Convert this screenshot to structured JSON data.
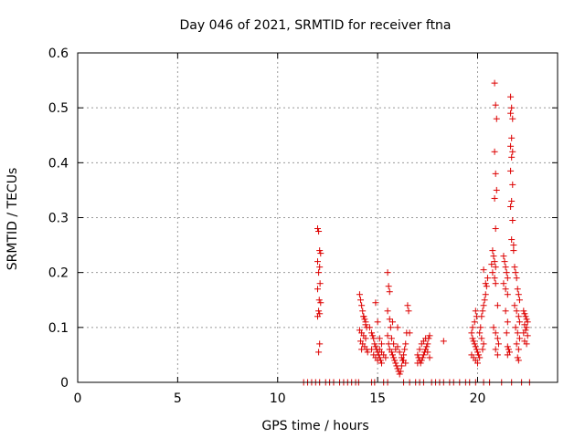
{
  "chart_data": {
    "type": "scatter",
    "title": "Day 046 of 2021, SRMTID for receiver ftna",
    "xlabel": "GPS time / hours",
    "ylabel": "SRMTID / TECUs",
    "xlim": [
      0,
      24
    ],
    "ylim": [
      0,
      0.6
    ],
    "xticks": [
      0,
      5,
      10,
      15,
      20
    ],
    "yticks": [
      0,
      0.1,
      0.2,
      0.3,
      0.4,
      0.5,
      0.6
    ],
    "ytick_labels": [
      "0",
      "0.1",
      "0.2",
      "0.3",
      "0.4",
      "0.5",
      "0.6"
    ],
    "grid": true,
    "marker": "+",
    "color": "#dd0000",
    "series": [
      {
        "name": "SRMTID",
        "points": [
          [
            12.0,
            0.28
          ],
          [
            12.05,
            0.275
          ],
          [
            12.1,
            0.24
          ],
          [
            12.15,
            0.235
          ],
          [
            12.0,
            0.22
          ],
          [
            12.1,
            0.21
          ],
          [
            12.05,
            0.2
          ],
          [
            12.12,
            0.18
          ],
          [
            12.0,
            0.17
          ],
          [
            12.08,
            0.15
          ],
          [
            12.15,
            0.145
          ],
          [
            12.05,
            0.13
          ],
          [
            12.1,
            0.125
          ],
          [
            12.0,
            0.12
          ],
          [
            12.1,
            0.07
          ],
          [
            12.05,
            0.055
          ],
          [
            14.1,
            0.16
          ],
          [
            14.15,
            0.15
          ],
          [
            14.2,
            0.14
          ],
          [
            14.25,
            0.13
          ],
          [
            14.3,
            0.12
          ],
          [
            14.35,
            0.115
          ],
          [
            14.4,
            0.11
          ],
          [
            14.45,
            0.1
          ],
          [
            14.1,
            0.095
          ],
          [
            14.2,
            0.09
          ],
          [
            14.3,
            0.085
          ],
          [
            14.4,
            0.08
          ],
          [
            14.15,
            0.075
          ],
          [
            14.25,
            0.07
          ],
          [
            14.35,
            0.065
          ],
          [
            14.45,
            0.06
          ],
          [
            14.5,
            0.055
          ],
          [
            14.2,
            0.06
          ],
          [
            14.3,
            0.12
          ],
          [
            14.4,
            0.105
          ],
          [
            14.6,
            0.1
          ],
          [
            14.7,
            0.09
          ],
          [
            14.75,
            0.085
          ],
          [
            14.8,
            0.08
          ],
          [
            14.85,
            0.07
          ],
          [
            14.9,
            0.065
          ],
          [
            14.95,
            0.06
          ],
          [
            15.0,
            0.055
          ],
          [
            15.05,
            0.05
          ],
          [
            15.1,
            0.045
          ],
          [
            15.15,
            0.04
          ],
          [
            15.2,
            0.035
          ],
          [
            14.7,
            0.06
          ],
          [
            14.8,
            0.05
          ],
          [
            14.9,
            0.045
          ],
          [
            15.0,
            0.04
          ],
          [
            15.1,
            0.06
          ],
          [
            15.2,
            0.07
          ],
          [
            14.9,
            0.145
          ],
          [
            15.0,
            0.11
          ],
          [
            15.1,
            0.08
          ],
          [
            15.2,
            0.055
          ],
          [
            15.3,
            0.05
          ],
          [
            15.4,
            0.045
          ],
          [
            15.5,
            0.2
          ],
          [
            15.55,
            0.175
          ],
          [
            15.6,
            0.165
          ],
          [
            15.5,
            0.13
          ],
          [
            15.6,
            0.115
          ],
          [
            15.65,
            0.1
          ],
          [
            15.5,
            0.085
          ],
          [
            15.55,
            0.07
          ],
          [
            15.6,
            0.06
          ],
          [
            15.7,
            0.055
          ],
          [
            15.75,
            0.05
          ],
          [
            15.8,
            0.045
          ],
          [
            15.85,
            0.04
          ],
          [
            15.9,
            0.035
          ],
          [
            15.95,
            0.03
          ],
          [
            16.0,
            0.025
          ],
          [
            16.05,
            0.02
          ],
          [
            16.1,
            0.015
          ],
          [
            16.15,
            0.02
          ],
          [
            16.2,
            0.03
          ],
          [
            16.25,
            0.04
          ],
          [
            16.3,
            0.05
          ],
          [
            16.35,
            0.06
          ],
          [
            16.4,
            0.07
          ],
          [
            16.45,
            0.09
          ],
          [
            16.5,
            0.14
          ],
          [
            16.55,
            0.13
          ],
          [
            16.6,
            0.09
          ],
          [
            15.7,
            0.08
          ],
          [
            15.8,
            0.07
          ],
          [
            15.9,
            0.06
          ],
          [
            16.0,
            0.065
          ],
          [
            16.1,
            0.055
          ],
          [
            16.2,
            0.045
          ],
          [
            16.3,
            0.04
          ],
          [
            16.4,
            0.035
          ],
          [
            15.75,
            0.11
          ],
          [
            16.0,
            0.1
          ],
          [
            17.0,
            0.05
          ],
          [
            17.05,
            0.045
          ],
          [
            17.1,
            0.04
          ],
          [
            17.15,
            0.035
          ],
          [
            17.2,
            0.04
          ],
          [
            17.25,
            0.045
          ],
          [
            17.3,
            0.05
          ],
          [
            17.35,
            0.055
          ],
          [
            17.4,
            0.06
          ],
          [
            17.45,
            0.065
          ],
          [
            17.5,
            0.07
          ],
          [
            17.55,
            0.08
          ],
          [
            17.6,
            0.085
          ],
          [
            17.1,
            0.06
          ],
          [
            17.2,
            0.07
          ],
          [
            17.3,
            0.075
          ],
          [
            17.4,
            0.08
          ],
          [
            17.5,
            0.055
          ],
          [
            17.6,
            0.045
          ],
          [
            17.0,
            0.035
          ],
          [
            18.3,
            0.075
          ],
          [
            19.7,
            0.09
          ],
          [
            19.75,
            0.08
          ],
          [
            19.8,
            0.075
          ],
          [
            19.85,
            0.07
          ],
          [
            19.9,
            0.065
          ],
          [
            19.95,
            0.06
          ],
          [
            20.0,
            0.055
          ],
          [
            20.05,
            0.05
          ],
          [
            19.7,
            0.05
          ],
          [
            19.8,
            0.045
          ],
          [
            19.9,
            0.04
          ],
          [
            20.0,
            0.035
          ],
          [
            20.1,
            0.045
          ],
          [
            19.75,
            0.1
          ],
          [
            19.85,
            0.11
          ],
          [
            19.95,
            0.12
          ],
          [
            19.9,
            0.13
          ],
          [
            20.1,
            0.09
          ],
          [
            20.15,
            0.1
          ],
          [
            20.2,
            0.12
          ],
          [
            20.25,
            0.13
          ],
          [
            20.3,
            0.14
          ],
          [
            20.35,
            0.15
          ],
          [
            20.4,
            0.16
          ],
          [
            20.45,
            0.175
          ],
          [
            20.5,
            0.19
          ],
          [
            20.3,
            0.205
          ],
          [
            20.4,
            0.18
          ],
          [
            20.2,
            0.08
          ],
          [
            20.3,
            0.07
          ],
          [
            20.25,
            0.06
          ],
          [
            20.7,
            0.215
          ],
          [
            20.75,
            0.24
          ],
          [
            20.8,
            0.23
          ],
          [
            20.85,
            0.22
          ],
          [
            20.9,
            0.21
          ],
          [
            20.75,
            0.2
          ],
          [
            20.85,
            0.19
          ],
          [
            20.9,
            0.18
          ],
          [
            21.0,
            0.14
          ],
          [
            20.8,
            0.1
          ],
          [
            20.9,
            0.09
          ],
          [
            21.0,
            0.08
          ],
          [
            21.05,
            0.07
          ],
          [
            20.9,
            0.06
          ],
          [
            21.0,
            0.05
          ],
          [
            20.85,
            0.545
          ],
          [
            20.9,
            0.505
          ],
          [
            20.95,
            0.48
          ],
          [
            20.85,
            0.42
          ],
          [
            20.9,
            0.38
          ],
          [
            20.95,
            0.35
          ],
          [
            20.85,
            0.335
          ],
          [
            20.9,
            0.28
          ],
          [
            21.3,
            0.23
          ],
          [
            21.35,
            0.22
          ],
          [
            21.4,
            0.21
          ],
          [
            21.45,
            0.2
          ],
          [
            21.5,
            0.19
          ],
          [
            21.3,
            0.18
          ],
          [
            21.4,
            0.17
          ],
          [
            21.5,
            0.16
          ],
          [
            21.4,
            0.13
          ],
          [
            21.5,
            0.11
          ],
          [
            21.45,
            0.09
          ],
          [
            21.5,
            0.065
          ],
          [
            21.55,
            0.06
          ],
          [
            21.6,
            0.055
          ],
          [
            21.5,
            0.05
          ],
          [
            21.65,
            0.52
          ],
          [
            21.7,
            0.5
          ],
          [
            21.65,
            0.49
          ],
          [
            21.75,
            0.48
          ],
          [
            21.7,
            0.445
          ],
          [
            21.65,
            0.43
          ],
          [
            21.75,
            0.42
          ],
          [
            21.7,
            0.41
          ],
          [
            21.65,
            0.385
          ],
          [
            21.75,
            0.36
          ],
          [
            21.7,
            0.33
          ],
          [
            21.65,
            0.32
          ],
          [
            21.75,
            0.295
          ],
          [
            21.7,
            0.26
          ],
          [
            21.8,
            0.25
          ],
          [
            21.8,
            0.24
          ],
          [
            21.85,
            0.21
          ],
          [
            21.9,
            0.2
          ],
          [
            21.95,
            0.19
          ],
          [
            22.0,
            0.17
          ],
          [
            22.05,
            0.16
          ],
          [
            22.1,
            0.15
          ],
          [
            21.85,
            0.14
          ],
          [
            21.95,
            0.13
          ],
          [
            22.05,
            0.12
          ],
          [
            22.1,
            0.11
          ],
          [
            21.9,
            0.1
          ],
          [
            22.0,
            0.09
          ],
          [
            22.1,
            0.08
          ],
          [
            21.95,
            0.07
          ],
          [
            22.05,
            0.06
          ],
          [
            22.0,
            0.045
          ],
          [
            22.05,
            0.04
          ],
          [
            22.3,
            0.13
          ],
          [
            22.35,
            0.125
          ],
          [
            22.4,
            0.12
          ],
          [
            22.45,
            0.115
          ],
          [
            22.5,
            0.11
          ],
          [
            22.35,
            0.105
          ],
          [
            22.45,
            0.1
          ],
          [
            22.4,
            0.095
          ],
          [
            22.3,
            0.09
          ],
          [
            22.5,
            0.085
          ],
          [
            22.35,
            0.075
          ],
          [
            22.45,
            0.07
          ],
          [
            11.3,
            0
          ],
          [
            11.5,
            0
          ],
          [
            11.7,
            0
          ],
          [
            11.9,
            0
          ],
          [
            12.1,
            0
          ],
          [
            12.4,
            0
          ],
          [
            12.6,
            0
          ],
          [
            12.8,
            0
          ],
          [
            13.1,
            0
          ],
          [
            13.3,
            0
          ],
          [
            13.5,
            0
          ],
          [
            13.7,
            0
          ],
          [
            13.9,
            0
          ],
          [
            14.05,
            0
          ],
          [
            14.7,
            0
          ],
          [
            14.85,
            0
          ],
          [
            15.3,
            0
          ],
          [
            15.5,
            0
          ],
          [
            16.3,
            0
          ],
          [
            16.6,
            0
          ],
          [
            16.9,
            0
          ],
          [
            17.1,
            0
          ],
          [
            17.3,
            0
          ],
          [
            17.7,
            0
          ],
          [
            17.9,
            0
          ],
          [
            18.1,
            0
          ],
          [
            18.3,
            0
          ],
          [
            18.6,
            0
          ],
          [
            18.8,
            0
          ],
          [
            19.1,
            0
          ],
          [
            19.4,
            0
          ],
          [
            19.6,
            0
          ],
          [
            19.9,
            0
          ],
          [
            20.3,
            0
          ],
          [
            20.6,
            0
          ],
          [
            21.2,
            0
          ],
          [
            21.7,
            0
          ],
          [
            22.2,
            0
          ],
          [
            22.6,
            0
          ]
        ]
      }
    ]
  }
}
